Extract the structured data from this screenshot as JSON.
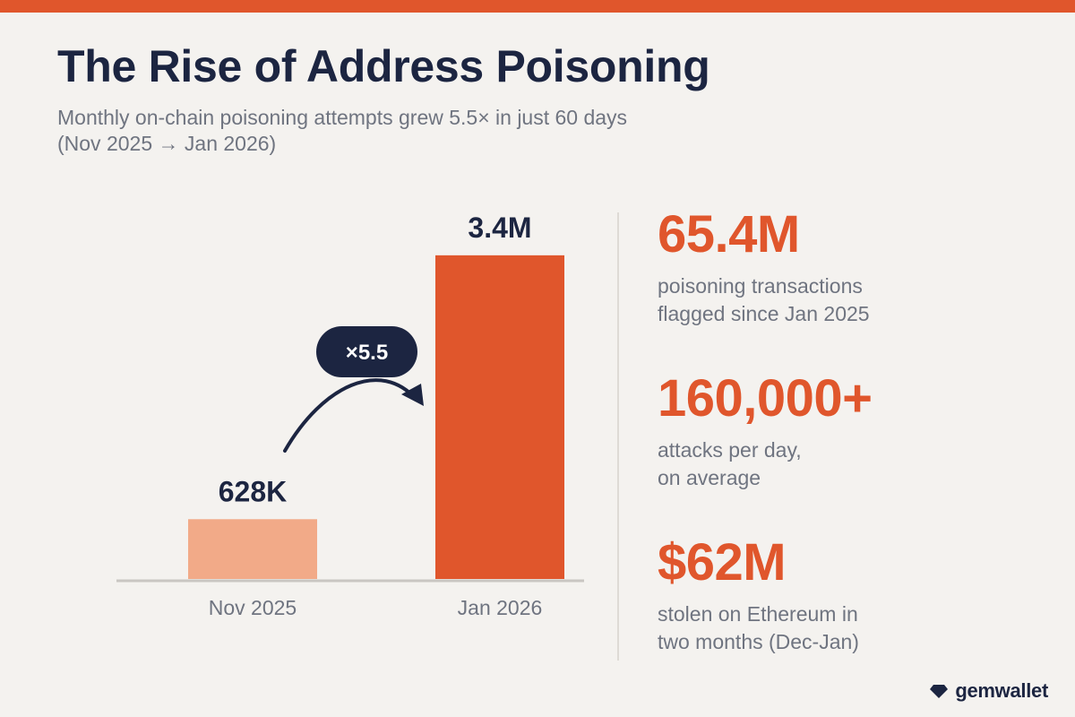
{
  "header": {
    "title": "The Rise of Address Poisoning",
    "subtitle_line1": "Monthly on-chain poisoning attempts grew 5.5× in just 60 days",
    "subtitle_line2": "(Nov 2025 → Jan 2026)"
  },
  "chart_data": {
    "type": "bar",
    "title": "",
    "xlabel": "",
    "ylabel": "",
    "categories": [
      "Nov 2025",
      "Jan 2026"
    ],
    "values": [
      628000,
      3400000
    ],
    "value_labels": [
      "628K",
      "3.4M"
    ],
    "ylim": [
      0,
      3700000
    ],
    "grid": false,
    "multiplier_label": "×5.5",
    "colors": [
      "#f2aa88",
      "#e0562c"
    ]
  },
  "stats": [
    {
      "value": "65.4M",
      "line1": "poisoning transactions",
      "line2": "flagged since Jan 2025"
    },
    {
      "value": "160,000+",
      "line1": "attacks per day,",
      "line2": "on average"
    },
    {
      "value": "$62M",
      "line1": "stolen on Ethereum in",
      "line2": "two months (Dec-Jan)"
    }
  ],
  "brand": {
    "name": "gemwallet",
    "icon": "gem-icon"
  },
  "colors": {
    "accent": "#e0562c",
    "accent_light": "#f2aa88",
    "navy": "#1c2541",
    "muted": "#6f7480",
    "background": "#f4f2ef"
  }
}
